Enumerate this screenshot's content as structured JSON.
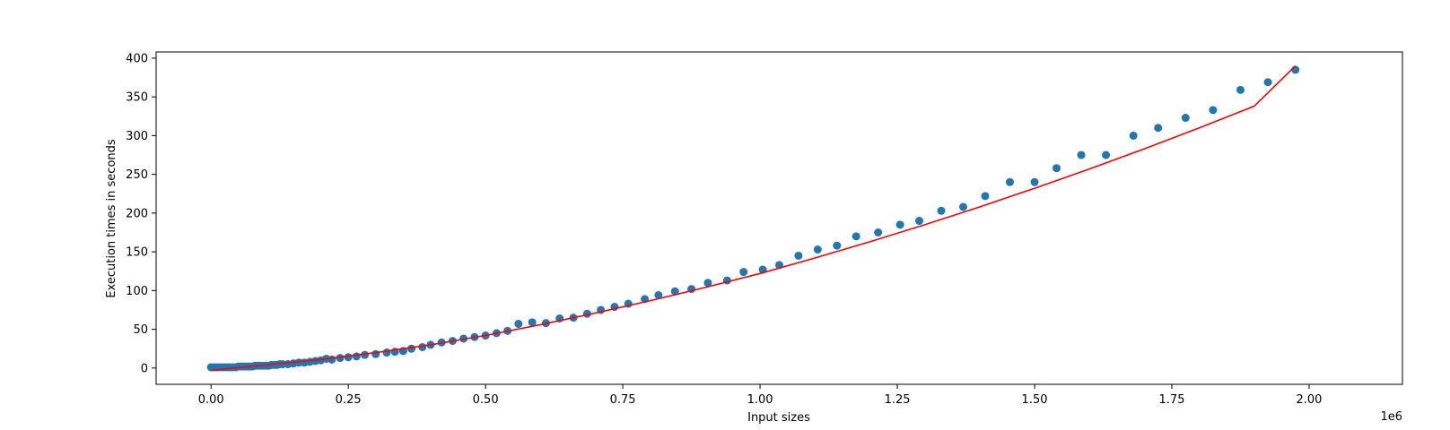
{
  "chart_data": {
    "type": "scatter",
    "title": "",
    "xlabel": "Input sizes",
    "ylabel": "Execution times in seconds",
    "x_offset_label": "1e6",
    "xlim": [
      -0.1,
      2.17
    ],
    "ylim": [
      -21,
      408
    ],
    "grid": false,
    "x_ticks": [
      0.0,
      0.25,
      0.5,
      0.75,
      1.0,
      1.25,
      1.5,
      1.75,
      2.0
    ],
    "x_tick_labels": [
      "0.00",
      "0.25",
      "0.50",
      "0.75",
      "1.00",
      "1.25",
      "1.50",
      "1.75",
      "2.00"
    ],
    "y_ticks": [
      0,
      50,
      100,
      150,
      200,
      250,
      300,
      350,
      400
    ],
    "y_tick_labels": [
      "0",
      "50",
      "100",
      "150",
      "200",
      "250",
      "300",
      "350",
      "400"
    ],
    "colors": {
      "points": "#1f77b4",
      "fit": "#ff0000"
    },
    "series": [
      {
        "type": "scatter",
        "x": [
          0.0,
          0.005,
          0.01,
          0.015,
          0.02,
          0.025,
          0.03,
          0.035,
          0.04,
          0.045,
          0.05,
          0.055,
          0.06,
          0.065,
          0.07,
          0.075,
          0.08,
          0.085,
          0.09,
          0.095,
          0.1,
          0.105,
          0.11,
          0.115,
          0.12,
          0.125,
          0.13,
          0.14,
          0.15,
          0.16,
          0.17,
          0.18,
          0.19,
          0.2,
          0.21,
          0.22,
          0.235,
          0.25,
          0.265,
          0.28,
          0.3,
          0.32,
          0.335,
          0.35,
          0.365,
          0.385,
          0.4,
          0.42,
          0.44,
          0.46,
          0.48,
          0.5,
          0.52,
          0.54,
          0.56,
          0.585,
          0.61,
          0.635,
          0.66,
          0.685,
          0.71,
          0.735,
          0.76,
          0.79,
          0.815,
          0.845,
          0.875,
          0.905,
          0.94,
          0.97,
          1.005,
          1.035,
          1.07,
          1.105,
          1.14,
          1.175,
          1.215,
          1.255,
          1.29,
          1.33,
          1.37,
          1.41,
          1.455,
          1.5,
          1.54,
          1.585,
          1.63,
          1.68,
          1.725,
          1.775,
          1.825,
          1.875,
          1.925,
          1.975
        ],
        "y": [
          1,
          1,
          1,
          1,
          1,
          1,
          1,
          1,
          1,
          1,
          2,
          2,
          2,
          2,
          2,
          2,
          3,
          3,
          3,
          3,
          3,
          3,
          4,
          4,
          4,
          5,
          5,
          5,
          6,
          7,
          7,
          8,
          9,
          10,
          12,
          11,
          13,
          14,
          15,
          17,
          18,
          20,
          21,
          22,
          25,
          27,
          30,
          33,
          35,
          38,
          40,
          42,
          45,
          48,
          57,
          59,
          58,
          64,
          65,
          70,
          75,
          79,
          83,
          89,
          94,
          99,
          102,
          110,
          113,
          124,
          127,
          133,
          145,
          153,
          158,
          170,
          175,
          185,
          190,
          203,
          208,
          222,
          240,
          240,
          258,
          275,
          275,
          300,
          310,
          323,
          333,
          359,
          369,
          385
        ]
      },
      {
        "type": "line",
        "x": [
          0.0,
          0.1,
          0.2,
          0.3,
          0.4,
          0.5,
          0.6,
          0.7,
          0.8,
          0.9,
          1.0,
          1.1,
          1.2,
          1.3,
          1.4,
          1.5,
          1.6,
          1.7,
          1.8,
          1.9,
          1.975
        ],
        "y": [
          -3,
          4,
          11,
          20,
          30,
          42,
          56,
          71,
          87,
          104,
          122,
          142,
          163,
          185,
          208,
          232,
          257,
          283,
          310,
          338,
          390
        ]
      }
    ]
  }
}
